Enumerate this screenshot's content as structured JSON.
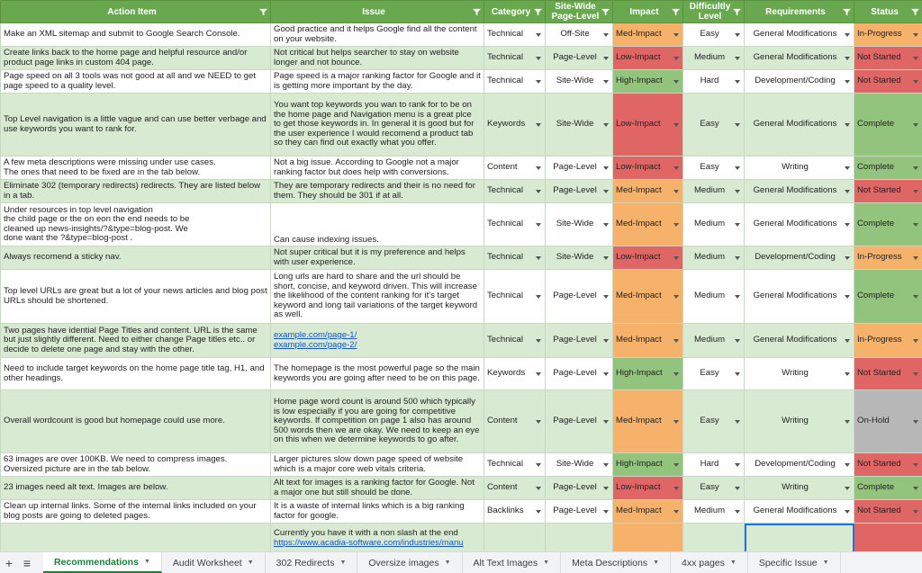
{
  "columns": [
    "Action Item",
    "Issue",
    "Category",
    "Site-Wide\nPage-Level",
    "Impact",
    "Difficultly\nLevel",
    "Requirements",
    "Status"
  ],
  "rows": [
    {
      "action": "Make an XML sitemap and submit to Google Search Console.",
      "issue": "Good practice and it helps Google find all the content on your website.",
      "category": "Technical",
      "scope": "Off-Site",
      "impact": "Med-Impact",
      "difficulty": "Easy",
      "requirements": "General Modifications",
      "status": "In-Progress"
    },
    {
      "action": "Create links back to the home page and helpful resource and/or product page links in custom 404 page.",
      "issue": "Not critical but helps searcher to stay on website longer and not bounce.",
      "category": "Technical",
      "scope": "Page-Level",
      "impact": "Low-Impact",
      "difficulty": "Medium",
      "requirements": "General Modifications",
      "status": "Not Started"
    },
    {
      "action": "Page speed on all 3 tools was not good at all and we NEED to get page speed to a quality level.",
      "issue": "Page speed is a major ranking factor for Google and it is getting more important by the day.",
      "category": "Technical",
      "scope": "Site-Wide",
      "impact": "High-Impact",
      "difficulty": "Hard",
      "requirements": "Development/Coding",
      "status": "Not Started"
    },
    {
      "action": "Top Level navigation is a little vague and can use better verbage and use keywords you want to rank for.",
      "issue": "You want top keywords you wan to rank for to be on the home page and Navigation menu is a great plce to get those keywords in. In general it is good but for the user experience I would recomend a product tab so they can find out exactly what you offer.",
      "category": "Keywords",
      "scope": "Site-Wide",
      "impact": "Low-Impact",
      "difficulty": "Easy",
      "requirements": "General Modifications",
      "status": "Complete"
    },
    {
      "action": "A few meta descriptions were missing under use cases.\nThe ones that need to be fixed are in the tab below.",
      "issue": "Not a big issue. According to Google not a major ranking factor but does help with conversions.",
      "category": "Content",
      "scope": "Page-Level",
      "impact": "Low-Impact",
      "difficulty": "Easy",
      "requirements": "Writing",
      "status": "Complete"
    },
    {
      "action": "Eliminate 302 (temporary redirects) redirects. They are listed below in a tab.",
      "issue": "They are temporary redirects and their is no need for them. They should be 301 if at all.",
      "category": "Technical",
      "scope": "Page-Level",
      "impact": "Med-Impact",
      "difficulty": "Medium",
      "requirements": "General Modifications",
      "status": "Not Started"
    },
    {
      "action": "Under resources in top level navigation\nthe child page or the on eon the end needs to be\ncleaned up news-insights/?&type=blog-post.  We\ndone want the ?&type=blog-post .",
      "issue": "Can cause indexing issues.",
      "category": "Technical",
      "scope": "Site-Wide",
      "impact": "Med-Impact",
      "difficulty": "Medium",
      "requirements": "General Modifications",
      "status": "Complete"
    },
    {
      "action": "Always recomend a sticky nav.",
      "issue": "Not super critical but it is my preference and helps with user experience.",
      "category": "Technical",
      "scope": "Site-Wide",
      "impact": "Low-Impact",
      "difficulty": "Medium",
      "requirements": "Development/Coding",
      "status": "In-Progress"
    },
    {
      "action": "Top level URLs are great but a lot of your news articles and blog post URLs should be shortened.",
      "issue": "Long urls are hard to share and the url should be short, concise, and keyword driven. This will increase the likelihood of the content ranking for it's target keyword and long tail variations of the target keyword as well.",
      "category": "Technical",
      "scope": "Page-Level",
      "impact": "Med-Impact",
      "difficulty": "Medium",
      "requirements": "General Modifications",
      "status": "Complete"
    },
    {
      "action": "Two pages have idential Page Titles and content. URL is the same but just slightly different. Need to either change Page titles etc.. or decide to delete one page and stay with the other.",
      "issue": "",
      "links": [
        "example.com/page-1/",
        "example.com/page-2/"
      ],
      "category": "Technical",
      "scope": "Page-Level",
      "impact": "Med-Impact",
      "difficulty": "Medium",
      "requirements": "General Modifications",
      "status": "In-Progress"
    },
    {
      "action": "Need to include target keywords on the home page title tag, H1, and other headings.",
      "issue": "The homepage is the most powerful page so the main keywords you are going after need to be on this page.",
      "category": "Keywords",
      "scope": "Page-Level",
      "impact": "High-Impact",
      "difficulty": "Easy",
      "requirements": "Writing",
      "status": "Not Started"
    },
    {
      "action": "Overall wordcount is good but homepage could use more.",
      "issue": "Home page word count is around 500 which typically is low especially if you are going for competitive keywords. If competition on page 1 also has around 500 words then we are okay. We need to keep an eye on this when we determine keywords to go after.",
      "category": "Content",
      "scope": "Page-Level",
      "impact": "Med-Impact",
      "difficulty": "Easy",
      "requirements": "Writing",
      "status": "On-Hold"
    },
    {
      "action": "63 images are over 100KB. We need to compress images.\nOversized picture are in the tab below.",
      "issue": "Larger pictures slow down page speed of website which is a major core web vitals criteria.",
      "category": "Technical",
      "scope": "Site-Wide",
      "impact": "High-Impact",
      "difficulty": "Hard",
      "requirements": "Development/Coding",
      "status": "Not Started"
    },
    {
      "action": "23 images need alt text. Images are below.",
      "issue": "Alt text for images is a ranking factor for Google. Not a major one but still should be done.",
      "category": "Content",
      "scope": "Page-Level",
      "impact": "Low-Impact",
      "difficulty": "Easy",
      "requirements": "Writing",
      "status": "Complete"
    },
    {
      "action": "Clean up internal links. Some of the internal links included on your blog posts are going to deleted pages.",
      "issue": "It is a waste of internal links which is a big ranking factor for google.",
      "category": "Backlinks",
      "scope": "Page-Level",
      "impact": "Med-Impact",
      "difficulty": "Medium",
      "requirements": "General Modifications",
      "status": "Not Started"
    },
    {
      "action": "",
      "issue": "Currently you have it with a non slash at the end",
      "links": [
        "https://www.acadia-software.com/industries/manu"
      ],
      "category": "",
      "scope": "",
      "impact": "",
      "difficulty": "",
      "requirements": "",
      "status": ""
    }
  ],
  "tabs": [
    "Recommendations",
    "Audit Worksheet",
    "302 Redirects",
    "Oversize images",
    "Alt Text Images",
    "Meta Descriptions",
    "4xx pages",
    "Specific Issue"
  ],
  "colors": {
    "header": "#6aa84f",
    "med": "#f6b26b",
    "low": "#e06666",
    "high": "#93c47d",
    "hold": "#b7b7b7",
    "band": "#d9ead3"
  },
  "icons": {
    "add": "plus-icon",
    "all_sheets": "menu-icon",
    "filter": "filter-icon"
  }
}
